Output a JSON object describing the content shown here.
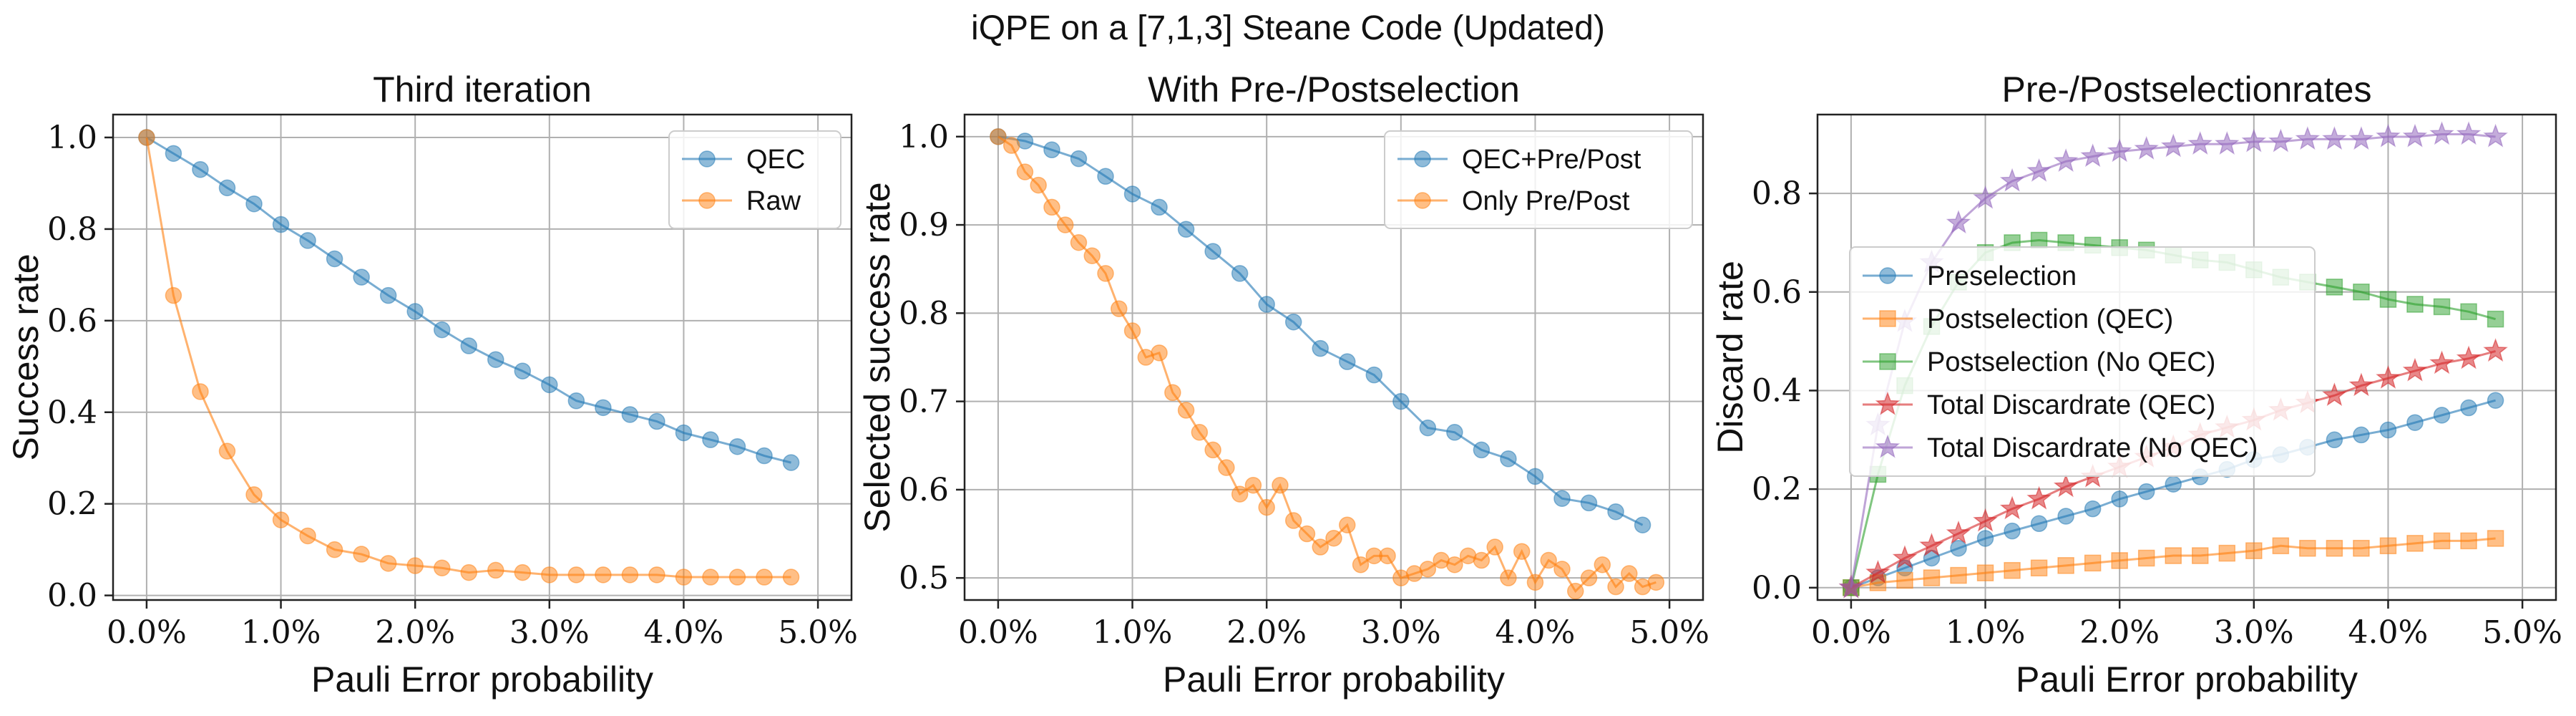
{
  "figure": {
    "title": "iQPE on a [7,1,3] Steane Code (Updated)"
  },
  "chart_data": [
    {
      "type": "line",
      "title": "Third iteration",
      "xlabel": "Pauli Error probability",
      "ylabel": "Success rate",
      "xlim": [
        -0.0025,
        0.0525
      ],
      "ylim": [
        -0.01,
        1.05
      ],
      "xticks": [
        0.0,
        0.01,
        0.02,
        0.03,
        0.04,
        0.05
      ],
      "xtick_labels": [
        "0.0%",
        "1.0%",
        "2.0%",
        "3.0%",
        "4.0%",
        "5.0%"
      ],
      "yticks": [
        0.0,
        0.2,
        0.4,
        0.6,
        0.8,
        1.0
      ],
      "ytick_labels": [
        "0.0",
        "0.2",
        "0.4",
        "0.6",
        "0.8",
        "1.0"
      ],
      "grid": true,
      "legend_position": "top-right",
      "series": [
        {
          "name": "QEC",
          "color": "#1f77b4",
          "marker": "circle",
          "x": [
            0,
            0.002,
            0.004,
            0.006,
            0.008,
            0.01,
            0.012,
            0.014,
            0.016,
            0.018,
            0.02,
            0.022,
            0.024,
            0.026,
            0.028,
            0.03,
            0.032,
            0.034,
            0.036,
            0.038,
            0.04,
            0.042,
            0.044,
            0.046,
            0.048
          ],
          "y": [
            1.0,
            0.965,
            0.93,
            0.89,
            0.855,
            0.81,
            0.775,
            0.735,
            0.695,
            0.655,
            0.62,
            0.58,
            0.545,
            0.515,
            0.49,
            0.46,
            0.425,
            0.41,
            0.395,
            0.38,
            0.355,
            0.34,
            0.325,
            0.305,
            0.29
          ]
        },
        {
          "name": "Raw",
          "color": "#ff7f0e",
          "marker": "circle",
          "x": [
            0,
            0.002,
            0.004,
            0.006,
            0.008,
            0.01,
            0.012,
            0.014,
            0.016,
            0.018,
            0.02,
            0.022,
            0.024,
            0.026,
            0.028,
            0.03,
            0.032,
            0.034,
            0.036,
            0.038,
            0.04,
            0.042,
            0.044,
            0.046,
            0.048
          ],
          "y": [
            1.0,
            0.655,
            0.445,
            0.315,
            0.22,
            0.165,
            0.13,
            0.1,
            0.09,
            0.07,
            0.065,
            0.06,
            0.05,
            0.055,
            0.05,
            0.045,
            0.045,
            0.045,
            0.045,
            0.045,
            0.04,
            0.04,
            0.04,
            0.04,
            0.04
          ]
        }
      ]
    },
    {
      "type": "line",
      "title": "With Pre-/Postselection",
      "xlabel": "Pauli Error probability",
      "ylabel": "Selected success rate",
      "xlim": [
        -0.0025,
        0.0525
      ],
      "ylim": [
        0.475,
        1.025
      ],
      "xticks": [
        0.0,
        0.01,
        0.02,
        0.03,
        0.04,
        0.05
      ],
      "xtick_labels": [
        "0.0%",
        "1.0%",
        "2.0%",
        "3.0%",
        "4.0%",
        "5.0%"
      ],
      "yticks": [
        0.5,
        0.6,
        0.7,
        0.8,
        0.9,
        1.0
      ],
      "ytick_labels": [
        "0.5",
        "0.6",
        "0.7",
        "0.8",
        "0.9",
        "1.0"
      ],
      "grid": true,
      "legend_position": "top-right",
      "series": [
        {
          "name": "QEC+Pre/Post",
          "color": "#1f77b4",
          "marker": "circle",
          "x": [
            0,
            0.002,
            0.004,
            0.006,
            0.008,
            0.01,
            0.012,
            0.014,
            0.016,
            0.018,
            0.02,
            0.022,
            0.024,
            0.026,
            0.028,
            0.03,
            0.032,
            0.034,
            0.036,
            0.038,
            0.04,
            0.042,
            0.044,
            0.046,
            0.048
          ],
          "y": [
            1.0,
            0.995,
            0.985,
            0.975,
            0.955,
            0.935,
            0.92,
            0.895,
            0.87,
            0.845,
            0.81,
            0.79,
            0.76,
            0.745,
            0.73,
            0.7,
            0.67,
            0.665,
            0.645,
            0.635,
            0.615,
            0.59,
            0.585,
            0.575,
            0.56
          ]
        },
        {
          "name": "Only Pre/Post",
          "color": "#ff7f0e",
          "marker": "circle",
          "x": [
            0,
            0.001,
            0.002,
            0.003,
            0.004,
            0.005,
            0.006,
            0.007,
            0.008,
            0.009,
            0.01,
            0.011,
            0.012,
            0.013,
            0.014,
            0.015,
            0.016,
            0.017,
            0.018,
            0.019,
            0.02,
            0.021,
            0.022,
            0.023,
            0.024,
            0.025,
            0.026,
            0.027,
            0.028,
            0.029,
            0.03,
            0.031,
            0.032,
            0.033,
            0.034,
            0.035,
            0.036,
            0.037,
            0.038,
            0.039,
            0.04,
            0.041,
            0.042,
            0.043,
            0.044,
            0.045,
            0.046,
            0.047,
            0.048,
            0.049
          ],
          "y": [
            1.0,
            0.99,
            0.96,
            0.945,
            0.92,
            0.9,
            0.88,
            0.865,
            0.845,
            0.805,
            0.78,
            0.75,
            0.755,
            0.71,
            0.69,
            0.665,
            0.645,
            0.625,
            0.595,
            0.605,
            0.58,
            0.605,
            0.565,
            0.55,
            0.535,
            0.545,
            0.56,
            0.515,
            0.525,
            0.525,
            0.5,
            0.505,
            0.51,
            0.52,
            0.515,
            0.525,
            0.52,
            0.535,
            0.5,
            0.53,
            0.495,
            0.52,
            0.51,
            0.485,
            0.5,
            0.515,
            0.49,
            0.505,
            0.49,
            0.495
          ]
        }
      ]
    },
    {
      "type": "line",
      "title": "Pre-/Postselectionrates",
      "xlabel": "Pauli Error probability",
      "ylabel": "Discard rate",
      "xlim": [
        -0.0025,
        0.0525
      ],
      "ylim": [
        -0.025,
        0.96
      ],
      "xticks": [
        0.0,
        0.01,
        0.02,
        0.03,
        0.04,
        0.05
      ],
      "xtick_labels": [
        "0.0%",
        "1.0%",
        "2.0%",
        "3.0%",
        "4.0%",
        "5.0%"
      ],
      "yticks": [
        0.0,
        0.2,
        0.4,
        0.6,
        0.8
      ],
      "ytick_labels": [
        "0.0",
        "0.2",
        "0.4",
        "0.6",
        "0.8"
      ],
      "grid": true,
      "legend_position": "center-left",
      "series": [
        {
          "name": "Preselection",
          "color": "#1f77b4",
          "marker": "circle",
          "x": [
            0,
            0.002,
            0.004,
            0.006,
            0.008,
            0.01,
            0.012,
            0.014,
            0.016,
            0.018,
            0.02,
            0.022,
            0.024,
            0.026,
            0.028,
            0.03,
            0.032,
            0.034,
            0.036,
            0.038,
            0.04,
            0.042,
            0.044,
            0.046,
            0.048
          ],
          "y": [
            0.0,
            0.02,
            0.04,
            0.06,
            0.08,
            0.1,
            0.115,
            0.13,
            0.145,
            0.16,
            0.18,
            0.195,
            0.21,
            0.225,
            0.24,
            0.26,
            0.27,
            0.285,
            0.3,
            0.31,
            0.32,
            0.335,
            0.35,
            0.365,
            0.38
          ]
        },
        {
          "name": "Postselection (QEC)",
          "color": "#ff7f0e",
          "marker": "square",
          "x": [
            0,
            0.002,
            0.004,
            0.006,
            0.008,
            0.01,
            0.012,
            0.014,
            0.016,
            0.018,
            0.02,
            0.022,
            0.024,
            0.026,
            0.028,
            0.03,
            0.032,
            0.034,
            0.036,
            0.038,
            0.04,
            0.042,
            0.044,
            0.046,
            0.048
          ],
          "y": [
            0.0,
            0.01,
            0.015,
            0.02,
            0.025,
            0.03,
            0.035,
            0.04,
            0.045,
            0.05,
            0.055,
            0.06,
            0.065,
            0.065,
            0.07,
            0.075,
            0.085,
            0.08,
            0.08,
            0.08,
            0.085,
            0.09,
            0.095,
            0.095,
            0.1
          ]
        },
        {
          "name": "Postselection (No QEC)",
          "color": "#2ca02c",
          "marker": "square",
          "x": [
            0,
            0.002,
            0.004,
            0.006,
            0.008,
            0.01,
            0.012,
            0.014,
            0.016,
            0.018,
            0.02,
            0.022,
            0.024,
            0.026,
            0.028,
            0.03,
            0.032,
            0.034,
            0.036,
            0.038,
            0.04,
            0.042,
            0.044,
            0.046,
            0.048
          ],
          "y": [
            0.0,
            0.23,
            0.41,
            0.53,
            0.62,
            0.68,
            0.7,
            0.705,
            0.7,
            0.695,
            0.69,
            0.685,
            0.675,
            0.665,
            0.66,
            0.645,
            0.63,
            0.62,
            0.61,
            0.6,
            0.585,
            0.575,
            0.57,
            0.56,
            0.545
          ]
        },
        {
          "name": "Total Discardrate (QEC)",
          "color": "#d62728",
          "marker": "star",
          "x": [
            0,
            0.002,
            0.004,
            0.006,
            0.008,
            0.01,
            0.012,
            0.014,
            0.016,
            0.018,
            0.02,
            0.022,
            0.024,
            0.026,
            0.028,
            0.03,
            0.032,
            0.034,
            0.036,
            0.038,
            0.04,
            0.042,
            0.044,
            0.046,
            0.048
          ],
          "y": [
            0.0,
            0.03,
            0.06,
            0.085,
            0.11,
            0.135,
            0.16,
            0.18,
            0.205,
            0.225,
            0.245,
            0.265,
            0.285,
            0.31,
            0.325,
            0.34,
            0.36,
            0.375,
            0.39,
            0.41,
            0.425,
            0.44,
            0.455,
            0.465,
            0.48
          ]
        },
        {
          "name": "Total Discardrate (No QEC)",
          "color": "#9467bd",
          "marker": "star",
          "x": [
            0,
            0.002,
            0.004,
            0.006,
            0.008,
            0.01,
            0.012,
            0.014,
            0.016,
            0.018,
            0.02,
            0.022,
            0.024,
            0.026,
            0.028,
            0.03,
            0.032,
            0.034,
            0.036,
            0.038,
            0.04,
            0.042,
            0.044,
            0.046,
            0.048
          ],
          "y": [
            0.0,
            0.33,
            0.54,
            0.66,
            0.74,
            0.79,
            0.825,
            0.845,
            0.865,
            0.875,
            0.885,
            0.89,
            0.895,
            0.9,
            0.9,
            0.905,
            0.905,
            0.91,
            0.91,
            0.91,
            0.915,
            0.915,
            0.92,
            0.92,
            0.915
          ]
        }
      ]
    }
  ]
}
